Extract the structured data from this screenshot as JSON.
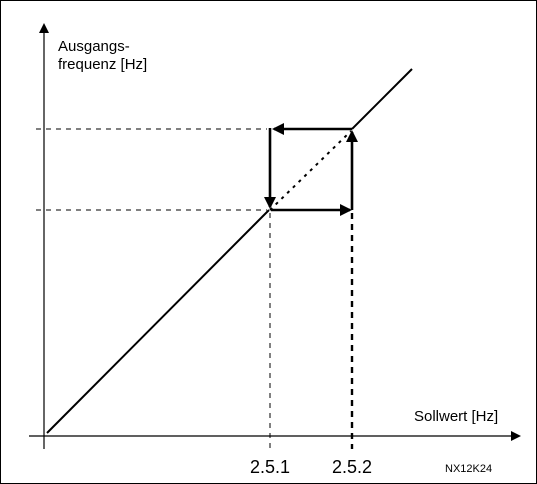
{
  "y_axis_label": {
    "line1": "Ausgangs-",
    "line2": "frequenz [Hz]"
  },
  "x_axis_label": "Sollwert [Hz]",
  "x_marks": {
    "low": "2.5.1",
    "high": "2.5.2"
  },
  "figure_code": "NX12K24"
}
